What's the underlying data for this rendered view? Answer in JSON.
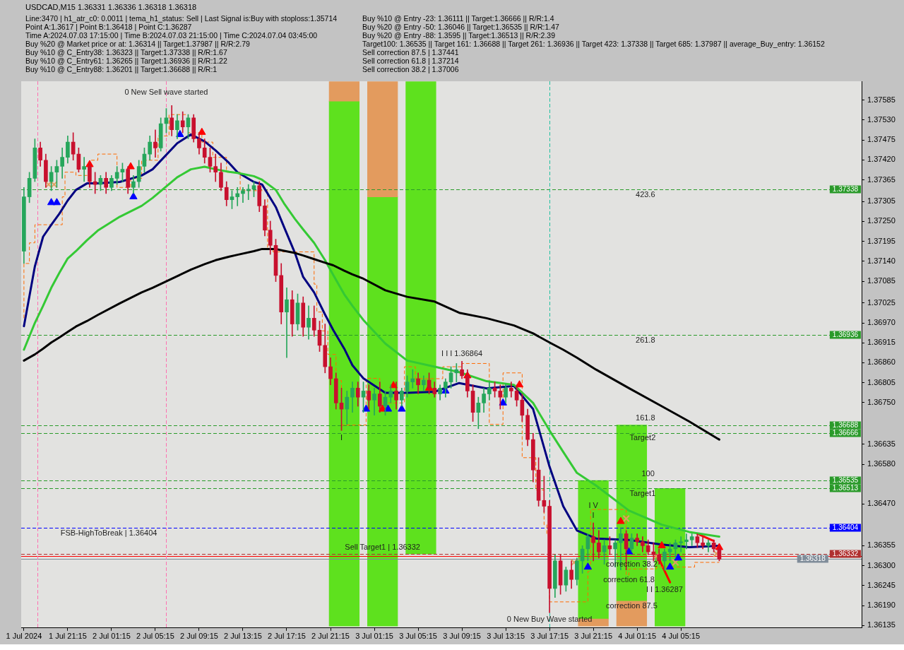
{
  "chart_data": {
    "type": "candlestick",
    "title": "USDCAD,M15 1.36331 1.36336 1.36318 1.36318",
    "xlim": [
      "2024-07-01T17:00",
      "2024-07-04T21:45"
    ],
    "ylim": [
      1.36128,
      1.37637
    ],
    "xticks": [
      {
        "value": "2024-07-01T17:15",
        "label": "1 Jul 2024"
      },
      {
        "value": "2024-07-01T21:15",
        "label": "1 Jul 21:15"
      },
      {
        "value": "2024-07-02T01:15",
        "label": "2 Jul 01:15"
      },
      {
        "value": "2024-07-02T05:15",
        "label": "2 Jul 05:15"
      },
      {
        "value": "2024-07-02T09:15",
        "label": "2 Jul 09:15"
      },
      {
        "value": "2024-07-02T13:15",
        "label": "2 Jul 13:15"
      },
      {
        "value": "2024-07-02T17:15",
        "label": "2 Jul 17:15"
      },
      {
        "value": "2024-07-02T21:15",
        "label": "2 Jul 21:15"
      },
      {
        "value": "2024-07-03T01:15",
        "label": "3 Jul 01:15"
      },
      {
        "value": "2024-07-03T05:15",
        "label": "3 Jul 05:15"
      },
      {
        "value": "2024-07-03T09:15",
        "label": "3 Jul 09:15"
      },
      {
        "value": "2024-07-03T13:15",
        "label": "3 Jul 13:15"
      },
      {
        "value": "2024-07-03T17:15",
        "label": "3 Jul 17:15"
      },
      {
        "value": "2024-07-03T21:15",
        "label": "3 Jul 21:15"
      },
      {
        "value": "2024-07-04T01:15",
        "label": "4 Jul 01:15"
      },
      {
        "value": "2024-07-04T05:15",
        "label": "4 Jul 05:15"
      }
    ],
    "yticks": [
      1.37585,
      {
        "value": 1.3753,
        "label": "1.37530"
      },
      1.37475,
      {
        "value": 1.3742,
        "label": "1.37420"
      },
      1.37365,
      1.37305,
      {
        "value": 1.3725,
        "label": "1.37250"
      },
      1.37195,
      {
        "value": 1.3714,
        "label": "1.37140"
      },
      1.37085,
      1.37025,
      {
        "value": 1.3697,
        "label": "1.36970"
      },
      1.36915,
      {
        "value": 1.3686,
        "label": "1.36860"
      },
      1.36805,
      {
        "value": 1.3675,
        "label": "1.36750"
      },
      1.36635,
      {
        "value": 1.3658,
        "label": "1.36580"
      },
      {
        "value": 1.3647,
        "label": "1.36470"
      },
      1.36355,
      {
        "value": 1.363,
        "label": "1.36300"
      },
      1.36245,
      {
        "value": 1.3619,
        "label": "1.36190"
      },
      1.36135
    ],
    "marker": "none",
    "line_style": "solid",
    "ref_lines": [
      {
        "axis": "y",
        "value": 1.37338,
        "label": "1.37338",
        "color": "#2a9a2a",
        "line_style": "dashed"
      },
      {
        "axis": "y",
        "value": 1.36936,
        "label": "1.36936",
        "color": "#2a9a2a",
        "line_style": "dashed"
      },
      {
        "axis": "y",
        "value": 1.36688,
        "label": "1.36688",
        "color": "#2a9a2a",
        "line_style": "dashed"
      },
      {
        "axis": "y",
        "value": 1.36666,
        "label": "1.36666",
        "color": "#2a9a2a",
        "line_style": "dashed"
      },
      {
        "axis": "y",
        "value": 1.36535,
        "label": "1.36535",
        "color": "#2a9a2a",
        "line_style": "dashed"
      },
      {
        "axis": "y",
        "value": 1.36513,
        "label": "1.36513",
        "color": "#2a9a2a",
        "line_style": "dashed"
      },
      {
        "axis": "y",
        "value": 1.36404,
        "label": "1.36404",
        "color": "#0000ff",
        "line_style": "dashed"
      },
      {
        "axis": "y",
        "value": 1.36332,
        "label": "1.36332",
        "color": "#b03030",
        "line_style": "dashed"
      },
      {
        "axis": "y",
        "value": 1.36326,
        "color": "#ff0000",
        "line_style": "solid"
      },
      {
        "axis": "y",
        "value": 1.36318,
        "label": "1.36318",
        "color": "#7f8c99",
        "line_style": "solid"
      },
      {
        "axis": "x",
        "value": "2024-07-01T18:30",
        "color": "#ff70b0",
        "line_style": "dashed"
      },
      {
        "axis": "x",
        "value": "2024-07-02T06:15",
        "color": "#ff70b0",
        "line_style": "dashed"
      },
      {
        "axis": "x",
        "value": "2024-07-03T17:15",
        "color": "#20c0a0",
        "line_style": "dashed"
      }
    ],
    "annotations": [
      "Line:3470 | h1_atr_c0: 0.0011 | tema_h1_status: Sell | Last Signal is:Buy with stoploss:1.35714",
      "Point A:1.3617 | Point B:1.36418 | Point C:1.36287",
      "Time A:2024.07.03 17:15:00 | Time B:2024.07.03 21:15:00 | Time C:2024.07.04 03:45:00",
      "Buy %20 @ Market price or at: 1.36314 || Target:1.37987 || R/R:2.79",
      "Buy %10 @ C_Entry38: 1.36323 || Target:1.37338 || R/R:1.67",
      "Buy %10 @ C_Entry61: 1.36265 || Target:1.36936 || R/R:1.22",
      "Buy %10 @ C_Entry88: 1.36201 || Target:1.36688 || R/R:1",
      "Buy %10 @ Entry -23: 1.36111 || Target:1.36666 || R/R:1.4",
      "Buy %20 @ Entry -50: 1.36046 || Target:1.36535 || R/R:1.47",
      "Buy %20 @ Entry -88: 1.3595 || Target:1.36513 || R/R:2.39",
      "Target100: 1.36535 || Target 161: 1.36688 || Target 261: 1.36936 || Target 423: 1.37338 || Target 685: 1.37987 || average_Buy_entry: 1.36152",
      "Sell correction 87.5 | 1.37441",
      "Sell correction 61.8 | 1.37214",
      "Sell correction 38.2 | 1.37006",
      {
        "text": "0 New Sell wave started",
        "x": "2024-07-02T06:15",
        "y": 1.3762
      },
      {
        "text": "I I I 1.36864",
        "x": "2024-07-03T09:15",
        "y": 1.36864
      },
      {
        "text": "I",
        "x": "2024-07-02T22:15",
        "y": 1.36673
      },
      {
        "text": "423.6",
        "x": "2024-07-04T02:00",
        "y": 1.37338
      },
      {
        "text": "261.8",
        "x": "2024-07-04T02:00",
        "y": 1.36936
      },
      {
        "text": "161.8",
        "x": "2024-07-04T02:00",
        "y": 1.36688
      },
      {
        "text": "Target2",
        "x": "2024-07-04T01:45",
        "y": 1.36666
      },
      {
        "text": "100",
        "x": "2024-07-04T02:15",
        "y": 1.36535
      },
      {
        "text": "Target1",
        "x": "2024-07-04T01:45",
        "y": 1.36513
      },
      {
        "text": "I",
        "x": "2024-07-03T21:15",
        "y": 1.36418
      },
      {
        "text": "I V",
        "x": "2024-07-03T21:15",
        "y": 1.36418
      },
      {
        "text": "FSB-HighToBreak | 1.36404",
        "x": "2024-07-02T01:00",
        "y": 1.36404
      },
      {
        "text": "Sell Target1 | 1.36332",
        "x": "2024-07-03T02:00",
        "y": 1.36332
      },
      {
        "text": "correction 38.2",
        "x": "2024-07-04T00:45",
        "y": 1.36318
      },
      {
        "text": "correction 61.8",
        "x": "2024-07-04T00:30",
        "y": 1.36274
      },
      {
        "text": "correction 87.5",
        "x": "2024-07-04T00:45",
        "y": 1.36202
      },
      {
        "text": "I I 1.36287",
        "x": "2024-07-04T03:45",
        "y": 1.36287
      },
      {
        "text": "0 New Buy Wave started",
        "x": "2024-07-03T17:15",
        "y": 1.36165
      }
    ],
    "series": [
      {
        "type": "bar",
        "color": "#e39b5e",
        "x": [
          "2024-07-02T22:30",
          "2024-07-03T02:00",
          "2024-07-03T21:15",
          "2024-07-04T00:45"
        ],
        "base": [
          1.37582,
          1.37318,
          1.36133,
          1.36133
        ],
        "values": [
          0.00054,
          0.00318,
          0.0002,
          0.00069
        ]
      },
      {
        "type": "bar",
        "color": "#5ee11e",
        "x": [
          "2024-07-02T22:30",
          "2024-07-03T02:00",
          "2024-07-03T05:30",
          "2024-07-03T21:15",
          "2024-07-04T00:45",
          "2024-07-04T04:15"
        ],
        "base": [
          1.36133,
          1.36133,
          1.36332,
          1.36153,
          1.36202,
          1.36133
        ],
        "values": [
          0.01449,
          0.01185,
          0.01304,
          0.00382,
          0.00486,
          0.0038
        ]
      },
      {
        "type": "line",
        "color": "#000000",
        "x": [
          "2024-07-01T17:15",
          "2024-07-01T18:15",
          "2024-07-01T19:00",
          "2024-07-01T19:45",
          "2024-07-01T20:30",
          "2024-07-01T21:15",
          "2024-07-01T22:00",
          "2024-07-01T23:00",
          "2024-07-02T00:00",
          "2024-07-02T02:00",
          "2024-07-02T04:00",
          "2024-07-02T05:00",
          "2024-07-02T07:15",
          "2024-07-02T08:30",
          "2024-07-02T09:45",
          "2024-07-02T10:45",
          "2024-07-02T12:00",
          "2024-07-02T12:45",
          "2024-07-02T14:15",
          "2024-07-02T15:00",
          "2024-07-02T16:15",
          "2024-07-02T17:00",
          "2024-07-02T18:00",
          "2024-07-02T18:45",
          "2024-07-02T19:45",
          "2024-07-02T20:45",
          "2024-07-02T21:30",
          "2024-07-02T22:30",
          "2024-07-02T23:15",
          "2024-07-03T00:15",
          "2024-07-03T02:15",
          "2024-07-03T04:15",
          "2024-07-03T06:45",
          "2024-07-03T09:00",
          "2024-07-03T11:30",
          "2024-07-03T14:00",
          "2024-07-03T15:45",
          "2024-07-03T17:15",
          "2024-07-03T18:30",
          "2024-07-03T19:45",
          "2024-07-03T21:30",
          "2024-07-04T00:30",
          "2024-07-04T03:30",
          "2024-07-04T06:00",
          "2024-07-04T08:45"
        ],
        "values": [
          1.36866,
          1.36883,
          1.36899,
          1.36916,
          1.3693,
          1.36945,
          1.3696,
          1.36975,
          1.36992,
          1.37024,
          1.37054,
          1.37067,
          1.37099,
          1.37117,
          1.37132,
          1.37143,
          1.37153,
          1.37158,
          1.37168,
          1.37174,
          1.37174,
          1.37169,
          1.37163,
          1.37156,
          1.37146,
          1.37136,
          1.37129,
          1.37114,
          1.37104,
          1.37092,
          1.3706,
          1.37042,
          1.37029,
          1.36998,
          1.36983,
          1.36963,
          1.36941,
          1.36916,
          1.36896,
          1.36874,
          1.36841,
          1.3679,
          1.3674,
          1.36698,
          1.36648
        ]
      },
      {
        "type": "line",
        "color": "#34c934",
        "x": [
          "2024-07-01T17:15",
          "2024-07-01T18:15",
          "2024-07-01T19:00",
          "2024-07-01T19:45",
          "2024-07-01T20:30",
          "2024-07-01T21:15",
          "2024-07-01T22:00",
          "2024-07-01T23:00",
          "2024-07-02T00:00",
          "2024-07-02T02:00",
          "2024-07-02T04:00",
          "2024-07-02T05:00",
          "2024-07-02T07:15",
          "2024-07-02T08:30",
          "2024-07-02T09:45",
          "2024-07-02T10:45",
          "2024-07-02T12:00",
          "2024-07-02T12:45",
          "2024-07-02T14:15",
          "2024-07-02T15:00",
          "2024-07-02T16:15",
          "2024-07-02T17:00",
          "2024-07-02T18:00",
          "2024-07-02T18:45",
          "2024-07-02T19:45",
          "2024-07-02T20:45",
          "2024-07-02T21:30",
          "2024-07-02T22:30",
          "2024-07-02T23:15",
          "2024-07-03T00:15",
          "2024-07-03T02:15",
          "2024-07-03T04:15",
          "2024-07-03T06:45",
          "2024-07-03T09:00",
          "2024-07-03T11:30",
          "2024-07-03T14:00",
          "2024-07-03T15:45",
          "2024-07-03T17:15",
          "2024-07-03T18:30",
          "2024-07-03T19:45",
          "2024-07-03T21:30",
          "2024-07-04T00:30",
          "2024-07-04T03:30",
          "2024-07-04T06:00",
          "2024-07-04T08:45"
        ],
        "values": [
          1.36896,
          1.3697,
          1.37017,
          1.37067,
          1.37109,
          1.37148,
          1.37168,
          1.37198,
          1.37225,
          1.37263,
          1.37293,
          1.37315,
          1.37372,
          1.37394,
          1.37401,
          1.37394,
          1.37387,
          1.37384,
          1.37375,
          1.37365,
          1.37337,
          1.373,
          1.37257,
          1.37228,
          1.37191,
          1.37143,
          1.37102,
          1.37049,
          1.37017,
          1.36978,
          1.36913,
          1.36866,
          1.36849,
          1.36834,
          1.36809,
          1.36799,
          1.36749,
          1.36673,
          1.36614,
          1.36556,
          1.36521,
          1.36452,
          1.36413,
          1.36393,
          1.3638
        ]
      },
      {
        "type": "line",
        "color": "#000080",
        "x": [
          "2024-07-01T17:15",
          "2024-07-01T18:15",
          "2024-07-01T19:00",
          "2024-07-01T19:45",
          "2024-07-01T20:30",
          "2024-07-01T21:15",
          "2024-07-01T22:00",
          "2024-07-01T23:00",
          "2024-07-02T00:00",
          "2024-07-02T02:00",
          "2024-07-02T04:00",
          "2024-07-02T05:00",
          "2024-07-02T07:15",
          "2024-07-02T08:30",
          "2024-07-02T09:45",
          "2024-07-02T10:45",
          "2024-07-02T12:00",
          "2024-07-02T12:45",
          "2024-07-02T14:15",
          "2024-07-02T15:00",
          "2024-07-02T16:15",
          "2024-07-02T17:00",
          "2024-07-02T18:00",
          "2024-07-02T18:45",
          "2024-07-02T19:45",
          "2024-07-02T20:45",
          "2024-07-02T21:30",
          "2024-07-02T22:30",
          "2024-07-02T23:15",
          "2024-07-03T00:15",
          "2024-07-03T02:15",
          "2024-07-03T04:15",
          "2024-07-03T06:45",
          "2024-07-03T09:00",
          "2024-07-03T11:30",
          "2024-07-03T14:00",
          "2024-07-03T15:45",
          "2024-07-03T17:15",
          "2024-07-03T18:30",
          "2024-07-03T19:45",
          "2024-07-03T21:30",
          "2024-07-04T00:30",
          "2024-07-04T03:30",
          "2024-07-04T06:00",
          "2024-07-04T08:45"
        ],
        "values": [
          1.36961,
          1.37126,
          1.37208,
          1.37241,
          1.37272,
          1.37308,
          1.37337,
          1.37355,
          1.37355,
          1.37359,
          1.37377,
          1.37394,
          1.37466,
          1.3749,
          1.37471,
          1.37446,
          1.37411,
          1.37386,
          1.37359,
          1.37352,
          1.3729,
          1.37235,
          1.37163,
          1.37097,
          1.37054,
          1.36993,
          1.3695,
          1.36899,
          1.36853,
          1.36817,
          1.36777,
          1.36777,
          1.3678,
          1.36804,
          1.36789,
          1.36796,
          1.36732,
          1.36573,
          1.36464,
          1.36397,
          1.36375,
          1.36371,
          1.36358,
          1.36351,
          1.36355
        ]
      },
      {
        "type": "step",
        "color": "#ff6a00",
        "line_style": "dashed",
        "x": [
          "2024-07-01T17:15",
          "2024-07-01T17:45",
          "2024-07-01T18:15",
          "2024-07-01T20:45",
          "2024-07-01T21:00",
          "2024-07-01T22:00",
          "2024-07-01T23:15",
          "2024-07-02T00:00",
          "2024-07-02T01:45",
          "2024-07-02T03:00",
          "2024-07-02T04:00",
          "2024-07-02T05:30",
          "2024-07-02T06:30",
          "2024-07-02T08:15",
          "2024-07-02T09:30",
          "2024-07-02T10:30",
          "2024-07-02T11:45",
          "2024-07-02T13:00",
          "2024-07-02T15:30",
          "2024-07-02T16:00",
          "2024-07-02T19:45",
          "2024-07-02T20:00",
          "2024-07-02T20:30",
          "2024-07-02T21:00",
          "2024-07-02T21:45",
          "2024-07-02T22:15",
          "2024-07-03T00:30",
          "2024-07-03T01:45",
          "2024-07-03T04:00",
          "2024-07-03T05:00",
          "2024-07-03T07:30",
          "2024-07-03T09:15",
          "2024-07-03T11:45",
          "2024-07-03T13:00",
          "2024-07-03T14:45",
          "2024-07-03T15:15",
          "2024-07-03T16:00",
          "2024-07-03T16:45",
          "2024-07-03T17:00",
          "2024-07-03T17:15",
          "2024-07-03T20:45",
          "2024-07-03T21:00",
          "2024-07-04T00:15",
          "2024-07-04T00:30",
          "2024-07-04T03:00",
          "2024-07-04T06:30",
          "2024-07-04T07:45",
          "2024-07-04T08:45"
        ],
        "values": [
          1.36983,
          1.37134,
          1.37191,
          1.37241,
          1.37318,
          1.37386,
          1.37377,
          1.37419,
          1.37436,
          1.37344,
          1.37369,
          1.37419,
          1.37486,
          1.37545,
          1.37495,
          1.37469,
          1.37427,
          1.37386,
          1.37335,
          1.37173,
          1.37166,
          1.37077,
          1.37,
          1.36948,
          1.36883,
          1.36811,
          1.36688,
          1.36817,
          1.36749,
          1.36849,
          1.36816,
          1.36849,
          1.36858,
          1.3669,
          1.36832,
          1.36598,
          1.36598,
          1.36509,
          1.36413,
          1.36385,
          1.362,
          1.36284,
          1.36455,
          1.36274,
          1.36291,
          1.36296,
          1.36309,
          1.36309
        ]
      },
      {
        "type": "line",
        "color": "#ff0000",
        "x": [
          "2024-07-04T03:15",
          "2024-07-04T04:15"
        ],
        "values": [
          1.36318,
          1.36254
        ]
      },
      {
        "type": "line",
        "color": "#ff0000",
        "x": [
          "2024-07-04T06:45",
          "2024-07-04T08:15"
        ],
        "values": [
          1.36388,
          1.36368
        ]
      },
      {
        "type": "scatter",
        "color": "#0000ff",
        "marker": "triangle",
        "x": [
          "2024-07-01T19:45",
          "2024-07-01T20:15",
          "2024-07-02T03:15",
          "2024-07-02T07:30",
          "2024-07-03T00:30",
          "2024-07-03T02:30",
          "2024-07-03T03:45",
          "2024-07-03T07:45",
          "2024-07-03T13:00",
          "2024-07-03T20:45",
          "2024-07-04T00:30",
          "2024-07-04T04:15",
          "2024-07-04T05:00"
        ],
        "values": [
          1.37302,
          1.37302,
          1.37318,
          1.3749,
          1.36732,
          1.36732,
          1.36732,
          1.36782,
          1.36749,
          1.36296,
          1.36338,
          1.36296,
          1.36321
        ]
      },
      {
        "type": "scatter",
        "color": "#ff0000",
        "marker": "triangle",
        "x": [
          "2024-07-01T23:15",
          "2024-07-02T03:00",
          "2024-07-02T09:30",
          "2024-07-03T02:00",
          "2024-07-03T03:00",
          "2024-07-03T06:15",
          "2024-07-03T09:45",
          "2024-07-03T14:30",
          "2024-07-03T23:45",
          "2024-07-04T03:30",
          "2024-07-04T08:45"
        ],
        "values": [
          1.37407,
          1.37401,
          1.37496,
          1.36732,
          1.36797,
          1.3679,
          1.36824,
          1.36799,
          1.36422,
          1.36355,
          1.3635
        ]
      },
      {
        "type": "scatter",
        "color": "#e0a060",
        "marker": "cross",
        "x": [
          "2024-07-01T19:30",
          "2024-07-01T20:00",
          "2024-07-03T19:30",
          "2024-07-04T00:15",
          "2024-07-04T03:00",
          "2024-07-04T04:45",
          "2024-07-04T08:30"
        ],
        "values": [
          1.37352,
          1.37352,
          1.36309,
          1.3643,
          1.36326,
          1.36309,
          1.36333
        ]
      },
      {
        "color": "#26a65b",
        "x": [
          "2024-07-01T17:15",
          "2024-07-01T17:45",
          "2024-07-01T18:15",
          "2024-07-01T19:45",
          "2024-07-01T20:15",
          "2024-07-01T20:45",
          "2024-07-01T21:15",
          "2024-07-01T22:45",
          "2024-07-02T00:15",
          "2024-07-02T01:15",
          "2024-07-02T01:45",
          "2024-07-02T02:15",
          "2024-07-02T03:15",
          "2024-07-02T03:45",
          "2024-07-02T04:15",
          "2024-07-02T04:45",
          "2024-07-02T05:45",
          "2024-07-02T06:15",
          "2024-07-02T07:15",
          "2024-07-02T08:15",
          "2024-07-02T12:15",
          "2024-07-02T12:45",
          "2024-07-02T13:15",
          "2024-07-02T13:45",
          "2024-07-02T14:15",
          "2024-07-02T17:15",
          "2024-07-02T18:15",
          "2024-07-02T19:15",
          "2024-07-02T22:45",
          "2024-07-02T23:15",
          "2024-07-03T00:15",
          "2024-07-03T01:15",
          "2024-07-03T02:15",
          "2024-07-03T02:45",
          "2024-07-03T03:45",
          "2024-07-03T04:15",
          "2024-07-03T04:45",
          "2024-07-03T05:45",
          "2024-07-03T07:15",
          "2024-07-03T07:45",
          "2024-07-03T08:15",
          "2024-07-03T08:45",
          "2024-07-03T10:45",
          "2024-07-03T11:15",
          "2024-07-03T11:45",
          "2024-07-03T13:15",
          "2024-07-03T17:45",
          "2024-07-03T18:45",
          "2024-07-03T19:45",
          "2024-07-03T20:15",
          "2024-07-03T20:45",
          "2024-07-03T22:15",
          "2024-07-03T23:15",
          "2024-07-03T23:45",
          "2024-07-04T00:45",
          "2024-07-04T03:45",
          "2024-07-04T04:15",
          "2024-07-04T04:45",
          "2024-07-04T05:15",
          "2024-07-04T05:45",
          "2024-07-04T06:15",
          "2024-07-04T07:45"
        ],
        "ohlc": [
          [
            1.37168,
            1.37344,
            1.37134,
            1.37318
          ],
          [
            1.37318,
            1.37386,
            1.37302,
            1.37369
          ],
          [
            1.37369,
            1.37478,
            1.3736,
            1.37453
          ],
          [
            1.3736,
            1.37402,
            1.37335,
            1.37386
          ],
          [
            1.37386,
            1.37419,
            1.37344,
            1.37402
          ],
          [
            1.37402,
            1.37453,
            1.37369,
            1.37427
          ],
          [
            1.37427,
            1.37486,
            1.37411,
            1.37469
          ],
          [
            1.37394,
            1.37427,
            1.3736,
            1.37402
          ],
          [
            1.37352,
            1.37377,
            1.37335,
            1.37369
          ],
          [
            1.37344,
            1.37377,
            1.37335,
            1.37369
          ],
          [
            1.37369,
            1.37402,
            1.37352,
            1.37386
          ],
          [
            1.37386,
            1.37411,
            1.3736,
            1.37394
          ],
          [
            1.37344,
            1.37377,
            1.37327,
            1.3736
          ],
          [
            1.3736,
            1.37419,
            1.37344,
            1.37402
          ],
          [
            1.37402,
            1.37453,
            1.37386,
            1.37436
          ],
          [
            1.37436,
            1.37486,
            1.37419,
            1.37469
          ],
          [
            1.37453,
            1.37536,
            1.37444,
            1.3752
          ],
          [
            1.3752,
            1.37562,
            1.37495,
            1.37536
          ],
          [
            1.37503,
            1.37545,
            1.37478,
            1.37528
          ],
          [
            1.37511,
            1.37545,
            1.37478,
            1.37536
          ],
          [
            1.3731,
            1.37335,
            1.37285,
            1.37318
          ],
          [
            1.37318,
            1.37344,
            1.37293,
            1.37327
          ],
          [
            1.37327,
            1.37344,
            1.37302,
            1.37335
          ],
          [
            1.37335,
            1.37352,
            1.3731,
            1.37339
          ],
          [
            1.37339,
            1.3736,
            1.37318,
            1.37349
          ],
          [
            1.37,
            1.37067,
            1.36874,
            1.37034
          ],
          [
            1.36967,
            1.3705,
            1.3695,
            1.37025
          ],
          [
            1.36958,
            1.37017,
            1.36925,
            1.36983
          ],
          [
            1.36732,
            1.36782,
            1.3669,
            1.36765
          ],
          [
            1.36765,
            1.36807,
            1.36723,
            1.3679
          ],
          [
            1.36765,
            1.36807,
            1.36723,
            1.36782
          ],
          [
            1.36757,
            1.3679,
            1.36715,
            1.36774
          ],
          [
            1.3674,
            1.36782,
            1.36715,
            1.36765
          ],
          [
            1.36765,
            1.36799,
            1.36749,
            1.36782
          ],
          [
            1.36757,
            1.3679,
            1.3674,
            1.36782
          ],
          [
            1.36782,
            1.36824,
            1.36765,
            1.36807
          ],
          [
            1.36807,
            1.36841,
            1.3679,
            1.36816
          ],
          [
            1.36799,
            1.36824,
            1.36782,
            1.36812
          ],
          [
            1.36774,
            1.36799,
            1.36757,
            1.3679
          ],
          [
            1.3679,
            1.36816,
            1.36765,
            1.36807
          ],
          [
            1.36807,
            1.36849,
            1.3679,
            1.36832
          ],
          [
            1.36832,
            1.36858,
            1.36807,
            1.36841
          ],
          [
            1.36723,
            1.36765,
            1.36678,
            1.36749
          ],
          [
            1.36749,
            1.3679,
            1.36723,
            1.36774
          ],
          [
            1.36774,
            1.36807,
            1.36757,
            1.3679
          ],
          [
            1.36765,
            1.36802,
            1.36749,
            1.3679
          ],
          [
            1.36237,
            1.3633,
            1.36212,
            1.36313
          ],
          [
            1.36246,
            1.36296,
            1.36229,
            1.36288
          ],
          [
            1.36262,
            1.36321,
            1.36246,
            1.36313
          ],
          [
            1.36313,
            1.36355,
            1.36279,
            1.36346
          ],
          [
            1.36346,
            1.36388,
            1.36313,
            1.3638
          ],
          [
            1.36338,
            1.36371,
            1.36304,
            1.36355
          ],
          [
            1.36346,
            1.36371,
            1.36296,
            1.36363
          ],
          [
            1.36363,
            1.36405,
            1.36288,
            1.36388
          ],
          [
            1.36346,
            1.36388,
            1.36338,
            1.36376
          ],
          [
            1.36313,
            1.36346,
            1.36287,
            1.36338
          ],
          [
            1.36338,
            1.36363,
            1.36313,
            1.36346
          ],
          [
            1.36346,
            1.36371,
            1.36321,
            1.36363
          ],
          [
            1.36363,
            1.3638,
            1.36338,
            1.36366
          ],
          [
            1.36366,
            1.36388,
            1.36346,
            1.36371
          ],
          [
            1.36371,
            1.36388,
            1.36355,
            1.3638
          ],
          [
            1.36355,
            1.36371,
            1.36338,
            1.36363
          ]
        ]
      },
      {
        "color": "#c8102e",
        "x": [
          "2024-07-01T18:45",
          "2024-07-01T19:15",
          "2024-07-01T21:45",
          "2024-07-01T22:15",
          "2024-07-01T23:15",
          "2024-07-01T23:45",
          "2024-07-02T00:45",
          "2024-07-02T02:45",
          "2024-07-02T05:15",
          "2024-07-02T06:45",
          "2024-07-02T07:45",
          "2024-07-02T08:45",
          "2024-07-02T09:15",
          "2024-07-02T09:45",
          "2024-07-02T10:15",
          "2024-07-02T10:45",
          "2024-07-02T11:15",
          "2024-07-02T11:45",
          "2024-07-02T14:45",
          "2024-07-02T15:15",
          "2024-07-02T15:45",
          "2024-07-02T16:15",
          "2024-07-02T16:45",
          "2024-07-02T17:45",
          "2024-07-02T18:45",
          "2024-07-02T19:45",
          "2024-07-02T20:15",
          "2024-07-02T20:45",
          "2024-07-02T21:15",
          "2024-07-02T21:45",
          "2024-07-02T22:15",
          "2024-07-02T23:45",
          "2024-07-03T00:45",
          "2024-07-03T01:45",
          "2024-07-03T03:15",
          "2024-07-03T05:15",
          "2024-07-03T06:15",
          "2024-07-03T06:45",
          "2024-07-03T09:15",
          "2024-07-03T09:45",
          "2024-07-03T10:15",
          "2024-07-03T12:15",
          "2024-07-03T12:45",
          "2024-07-03T13:45",
          "2024-07-03T14:15",
          "2024-07-03T14:45",
          "2024-07-03T15:15",
          "2024-07-03T15:45",
          "2024-07-03T16:15",
          "2024-07-03T16:45",
          "2024-07-03T17:15",
          "2024-07-03T18:15",
          "2024-07-03T19:15",
          "2024-07-03T21:15",
          "2024-07-03T21:45",
          "2024-07-03T22:45",
          "2024-07-04T00:15",
          "2024-07-04T01:15",
          "2024-07-04T01:45",
          "2024-07-04T02:15",
          "2024-07-04T02:45",
          "2024-07-04T03:15",
          "2024-07-04T06:45",
          "2024-07-04T07:15",
          "2024-07-04T08:15",
          "2024-07-04T08:45"
        ],
        "ohlc": [
          [
            1.37453,
            1.37469,
            1.37402,
            1.37419
          ],
          [
            1.37419,
            1.37436,
            1.37344,
            1.3736
          ],
          [
            1.37469,
            1.37495,
            1.37419,
            1.37436
          ],
          [
            1.37436,
            1.37453,
            1.37386,
            1.37394
          ],
          [
            1.37402,
            1.37411,
            1.37344,
            1.3736
          ],
          [
            1.3736,
            1.37386,
            1.37327,
            1.37352
          ],
          [
            1.37369,
            1.37386,
            1.37327,
            1.37344
          ],
          [
            1.37394,
            1.37402,
            1.37327,
            1.37344
          ],
          [
            1.37469,
            1.37503,
            1.37427,
            1.37453
          ],
          [
            1.37536,
            1.3757,
            1.37486,
            1.37503
          ],
          [
            1.37528,
            1.37553,
            1.37495,
            1.37511
          ],
          [
            1.37536,
            1.37545,
            1.37469,
            1.37478
          ],
          [
            1.37478,
            1.37495,
            1.37436,
            1.37453
          ],
          [
            1.37453,
            1.37478,
            1.37411,
            1.37427
          ],
          [
            1.37427,
            1.37453,
            1.37386,
            1.37402
          ],
          [
            1.37402,
            1.37436,
            1.3736,
            1.37386
          ],
          [
            1.37386,
            1.37411,
            1.37335,
            1.37344
          ],
          [
            1.37344,
            1.3736,
            1.37293,
            1.3731
          ],
          [
            1.37349,
            1.3736,
            1.37277,
            1.37293
          ],
          [
            1.37293,
            1.3731,
            1.3721,
            1.37226
          ],
          [
            1.37226,
            1.37251,
            1.37159,
            1.37184
          ],
          [
            1.37184,
            1.37201,
            1.37084,
            1.37101
          ],
          [
            1.37101,
            1.37134,
            1.36967,
            1.37
          ],
          [
            1.37034,
            1.37059,
            1.36933,
            1.36967
          ],
          [
            1.37025,
            1.37042,
            1.36933,
            1.36958
          ],
          [
            1.36983,
            1.37017,
            1.36933,
            1.3695
          ],
          [
            1.3695,
            1.36975,
            1.36891,
            1.36908
          ],
          [
            1.36908,
            1.36967,
            1.36832,
            1.36849
          ],
          [
            1.36849,
            1.36874,
            1.36799,
            1.36816
          ],
          [
            1.36816,
            1.36832,
            1.36732,
            1.36749
          ],
          [
            1.36749,
            1.3679,
            1.36673,
            1.36732
          ],
          [
            1.3679,
            1.36807,
            1.3674,
            1.36765
          ],
          [
            1.36782,
            1.36799,
            1.36732,
            1.36757
          ],
          [
            1.36774,
            1.36807,
            1.36723,
            1.3674
          ],
          [
            1.36782,
            1.36807,
            1.36732,
            1.36757
          ],
          [
            1.36816,
            1.36832,
            1.36774,
            1.36799
          ],
          [
            1.36812,
            1.36832,
            1.36774,
            1.3679
          ],
          [
            1.3679,
            1.36807,
            1.36765,
            1.36774
          ],
          [
            1.36841,
            1.36864,
            1.36816,
            1.36824
          ],
          [
            1.36824,
            1.36841,
            1.36765,
            1.36782
          ],
          [
            1.36782,
            1.36799,
            1.36698,
            1.36723
          ],
          [
            1.3679,
            1.36807,
            1.36765,
            1.36782
          ],
          [
            1.36782,
            1.36799,
            1.36732,
            1.36765
          ],
          [
            1.3679,
            1.36807,
            1.36765,
            1.36782
          ],
          [
            1.36782,
            1.36799,
            1.3674,
            1.36757
          ],
          [
            1.36757,
            1.36774,
            1.36698,
            1.36715
          ],
          [
            1.36715,
            1.36732,
            1.36631,
            1.36648
          ],
          [
            1.36648,
            1.36665,
            1.36531,
            1.36564
          ],
          [
            1.36564,
            1.36598,
            1.36464,
            1.3648
          ],
          [
            1.3648,
            1.36547,
            1.36447,
            1.36464
          ],
          [
            1.36464,
            1.3648,
            1.3617,
            1.36237
          ],
          [
            1.36313,
            1.3633,
            1.36221,
            1.36246
          ],
          [
            1.36288,
            1.36313,
            1.36237,
            1.36262
          ],
          [
            1.3638,
            1.36418,
            1.36313,
            1.36363
          ],
          [
            1.36363,
            1.36397,
            1.36321,
            1.36338
          ],
          [
            1.36355,
            1.3638,
            1.3633,
            1.36346
          ],
          [
            1.36388,
            1.36397,
            1.36288,
            1.36346
          ],
          [
            1.36376,
            1.36388,
            1.36355,
            1.36366
          ],
          [
            1.36366,
            1.3638,
            1.36338,
            1.36355
          ],
          [
            1.36355,
            1.36371,
            1.3633,
            1.36338
          ],
          [
            1.36338,
            1.36363,
            1.36313,
            1.3633
          ],
          [
            1.3633,
            1.36346,
            1.36304,
            1.36313
          ],
          [
            1.3638,
            1.36388,
            1.3635,
            1.36363
          ],
          [
            1.36363,
            1.3638,
            1.36346,
            1.36355
          ],
          [
            1.36363,
            1.36371,
            1.36338,
            1.36346
          ],
          [
            1.36346,
            1.36355,
            1.36313,
            1.36318
          ]
        ]
      }
    ]
  }
}
